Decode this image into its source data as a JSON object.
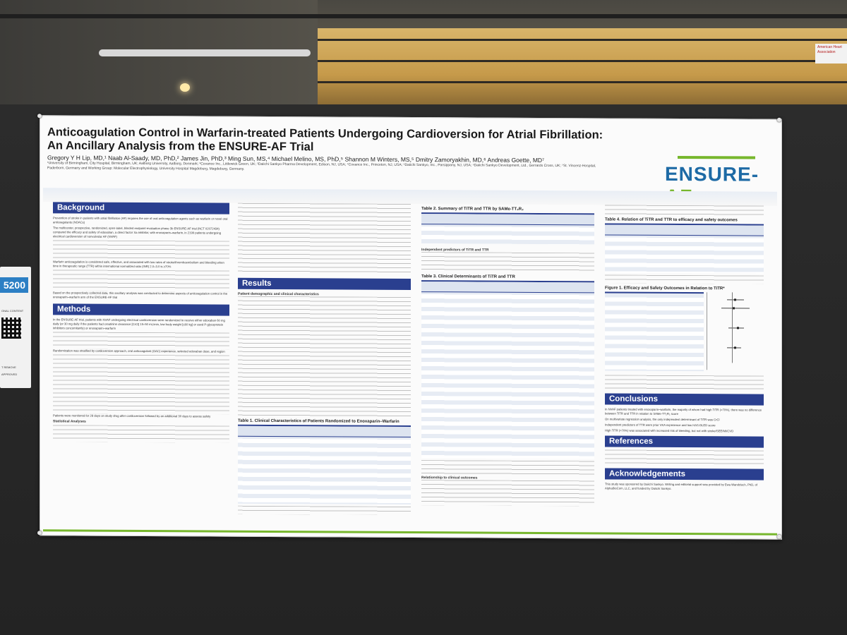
{
  "poster": {
    "title_line1": "Anticoagulation Control in Warfarin-treated Patients Undergoing Cardioversion for Atrial Fibrillation:",
    "title_line2": "An Ancillary Analysis from the ENSURE-AF Trial",
    "authors": "Gregory Y H Lip, MD,¹ Naab Al-Saady, MD, PhD,² James Jin, PhD,³ Ming Sun, MS,⁴ Michael Melino, MS, PhD,⁵ Shannon M Winters, MS,⁵ Dmitry Zamoryakhin, MD,⁶ Andreas Goette, MD⁷",
    "affiliations": "¹University of Birmingham, City Hospital, Birmingham, UK; Aalborg University, Aalborg, Denmark; ²Covance Inc., Littlewick Green, UK; ³Daiichi Sankyo Pharma Development, Edison, NJ, USA; ⁴Covance Inc., Princeton, NJ, USA; ⁵Daiichi Sankyo, Inc., Parsippany, NJ, USA; ⁶Daiichi Sankyo Development, Ltd., Gerrards Cross, UK; ⁷St. Vincenz-Hospital, Paderborn, Germany and Working Group: Molecular Electrophysiology, University Hospital Magdeburg, Magdeburg, Germany.",
    "logo_part1": "ENSURE-",
    "logo_part2": "AF"
  },
  "sections": {
    "background": "Background",
    "methods": "Methods",
    "results": "Results",
    "conclusions": "Conclusions",
    "references": "References",
    "acknowledgements": "Acknowledgements"
  },
  "background_text": [
    "Prevention of stroke in patients with atrial fibrillation (AF) requires the use of oral anticoagulation agents such as warfarin or novel oral anticoagulants (NOACs)",
    "The multicenter, prospective, randomized, open-label, blinded endpoint-evaluation phase 3b ENSURE-AF trial (NCT 02072434) compared the efficacy and safety of edoxaban, a direct factor Xa inhibitor, with enoxaparin–warfarin, in 2199 patients undergoing electrical cardioversion of nonvalvular AF (NVAF)",
    "Warfarin anticoagulation is considered safe, effective, and associated with low rates of stroke/thromboembolism and bleeding when time in therapeutic range (TTR) within international normalized ratio (INR) 2.0–3.0 is ≥70%",
    "Based on the prospectively collected data, this ancillary analysis was conducted to determine aspects of anticoagulation control in the enoxaparin–warfarin arm of the ENSURE-AF trial"
  ],
  "methods_text": [
    "In the ENSURE-AF trial, patients with NVAF undergoing electrical cardioversion were randomized to receive either edoxaban 60 mg daily (or 30 mg daily if the patients had creatinine clearance [CrCl] 15–50 mL/min, low body weight [≤60 kg] or used P-glycoprotein inhibitors concomitantly) or enoxaparin–warfarin",
    "Randomization was stratified by cardioversion approach, oral anticoagulant (OAC) experience, selected edoxaban dose, and region",
    "Patients were monitored for 28 days on study drug after cardioversion followed by an additional 30 days to assess safety",
    "Statistical Analyses"
  ],
  "results_heading": "Patient demographic and clinical characteristics",
  "table_titles": {
    "t1": "Table 1. Clinical Characteristics of Patients Randomized to Enoxaparin–Warfarin",
    "t2": "Table 2. Summary of TiTR and TTR by SAMe-TT₂R₂",
    "t3": "Table 3. Clinical Determinants of TiTR and TTR",
    "t4": "Table 4. Relation of TiTR and TTR to efficacy and safety outcomes",
    "fig1": "Figure 1. Efficacy and Safety Outcomes in Relation to TiTR*"
  },
  "independent_predictors": "Independent predictors of TiTR and TTR",
  "relationship_heading": "Relationship to clinical outcomes",
  "conclusions_text": [
    "In NVAF patients treated with enoxaparin–warfarin, the majority of whom had high TiTR (>70%), there was no difference between TiTR and TTR in relation to SAMe-TT₂R₂ score",
    "On multivariate regression analysis, the only independent determinant of TiTR was CrCl",
    "Independent predictors of TTR were prior VKA experience and low HAS-BLED score",
    "High TiTR (>70%) was associated with increased risk of bleeding, but not with stroke/SEE/MI/CVD"
  ],
  "acknowledgements_text": "This study was sponsored by Daiichi Sankyo. Writing and editorial support was provided by Ewa Wandzioch, PhD, of AlphaBioCom, LLC, and funded by Daiichi Sankyo.",
  "side_card": {
    "number": "5200",
    "note1": "ONAL CONTENT",
    "note2": "T REMOVE",
    "note3": "APPROVED"
  },
  "aha_sign": "American Heart Association",
  "colors": {
    "section_blue": "#2a3f8f",
    "logo_blue": "#1d6aa5",
    "logo_green": "#77b72d"
  }
}
